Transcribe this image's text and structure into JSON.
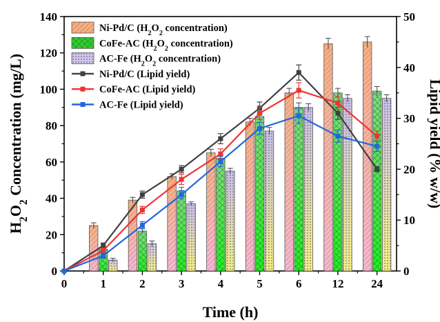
{
  "chart_data": {
    "type": "bar",
    "xlabel": "Time (h)",
    "ylabel_left": [
      "H",
      "2",
      "O",
      "2",
      " Concentration (mg/L)"
    ],
    "ylabel_right": "Lipid yield (% w/w)",
    "categories": [
      "1",
      "2",
      "3",
      "4",
      "5",
      "6",
      "12",
      "24"
    ],
    "x_origin_label": "0",
    "ylim_left": [
      0,
      140
    ],
    "ylim_right": [
      0,
      50
    ],
    "yticks_left": [
      0,
      20,
      40,
      60,
      80,
      100,
      120,
      140
    ],
    "yticks_right": [
      0,
      10,
      20,
      30,
      40,
      50
    ],
    "bar_series": [
      {
        "name": [
          "Ni-Pd/C (H",
          "2",
          "O",
          "2",
          " concentration)"
        ],
        "color": "#f4b183",
        "pattern": "diagonal-hatch",
        "values": [
          25,
          39,
          52,
          65,
          82,
          98,
          125,
          126
        ],
        "errors": [
          1.5,
          1.5,
          1.5,
          2,
          2,
          2.5,
          3,
          3
        ]
      },
      {
        "name": [
          "CoFe-AC (H",
          "2",
          "O",
          "2",
          " concentration)"
        ],
        "color": "#33cc33",
        "pattern": "crosshatch",
        "values": [
          12,
          22,
          44,
          62,
          85,
          90,
          98,
          99
        ],
        "errors": [
          1.5,
          1.5,
          2,
          2,
          2,
          2.5,
          2.5,
          2.5
        ]
      },
      {
        "name": [
          "AC-Fe (H",
          "2",
          "O",
          "2",
          " concentration)"
        ],
        "color": "#cfc8e8",
        "pattern": "dotted",
        "values": [
          6,
          15,
          37,
          55,
          77,
          90,
          95,
          95
        ],
        "errors": [
          1,
          1.5,
          1,
          1.5,
          2,
          2,
          2,
          2
        ]
      }
    ],
    "line_series": [
      {
        "name": "Ni-Pd/C (Lipid yield)",
        "color": "#404040",
        "marker": "square",
        "x": [
          0,
          1,
          2,
          3,
          4,
          5,
          6,
          12,
          24
        ],
        "values": [
          0,
          5,
          15,
          20,
          26,
          32,
          39,
          31,
          20
        ],
        "errors": [
          0,
          0.5,
          0.7,
          0.7,
          1,
          1.2,
          1.5,
          1.2,
          0.5
        ]
      },
      {
        "name": "CoFe-AC (Lipid yield)",
        "color": "#ee3333",
        "marker": "square",
        "x": [
          0,
          1,
          2,
          3,
          4,
          5,
          6,
          12,
          24
        ],
        "values": [
          0,
          4,
          12,
          18,
          23,
          31,
          35.5,
          33,
          26.5
        ],
        "errors": [
          0,
          0.5,
          0.7,
          1,
          1,
          1.2,
          1.5,
          1.2,
          1
        ]
      },
      {
        "name": "AC-Fe (Lipid yield)",
        "color": "#2266dd",
        "marker": "square",
        "x": [
          0,
          1,
          2,
          3,
          4,
          5,
          6,
          12,
          24
        ],
        "values": [
          0,
          3,
          9,
          15,
          21.5,
          28,
          30.5,
          26.5,
          24.5
        ],
        "errors": [
          0,
          0.5,
          0.7,
          0.8,
          1,
          1.2,
          1.5,
          1.2,
          1
        ]
      }
    ],
    "legend_position": "top-left",
    "grid": false
  }
}
